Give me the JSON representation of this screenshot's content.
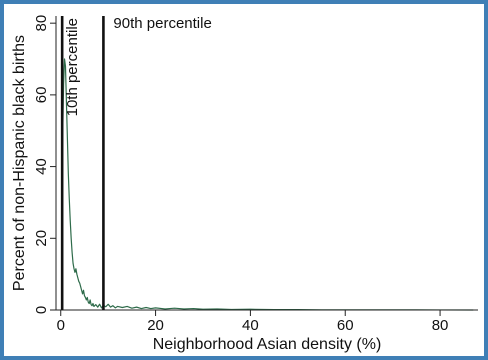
{
  "chart_data": {
    "type": "line",
    "title": "",
    "xlabel": "Neighborhood Asian density (%)",
    "ylabel": "Percent of non-Hispanic black births",
    "xlim": [
      -1,
      88
    ],
    "ylim": [
      0,
      82
    ],
    "x_ticks": [
      0,
      20,
      40,
      60,
      80
    ],
    "y_ticks": [
      0,
      20,
      40,
      60,
      80
    ],
    "grid": false,
    "series": [
      {
        "color": "#2e6b4a",
        "points": [
          [
            0.2,
            27
          ],
          [
            0.4,
            48
          ],
          [
            0.6,
            63
          ],
          [
            0.8,
            70
          ],
          [
            1.0,
            68
          ],
          [
            1.2,
            58
          ],
          [
            1.4,
            48
          ],
          [
            1.6,
            38
          ],
          [
            1.8,
            31
          ],
          [
            2.0,
            25
          ],
          [
            2.2,
            20
          ],
          [
            2.4,
            16
          ],
          [
            2.6,
            13
          ],
          [
            2.8,
            11.5
          ],
          [
            3.0,
            10.5
          ],
          [
            3.2,
            11.5
          ],
          [
            3.4,
            10
          ],
          [
            3.6,
            9
          ],
          [
            3.8,
            8
          ],
          [
            4.0,
            7.5
          ],
          [
            4.2,
            6.5
          ],
          [
            4.4,
            5.5
          ],
          [
            4.6,
            4.5
          ],
          [
            4.8,
            5.5
          ],
          [
            5.0,
            4
          ],
          [
            5.2,
            3.5
          ],
          [
            5.4,
            2.8
          ],
          [
            5.6,
            3.5
          ],
          [
            5.8,
            2.2
          ],
          [
            6.0,
            1.8
          ],
          [
            6.2,
            2.8
          ],
          [
            6.4,
            1.5
          ],
          [
            6.6,
            1.2
          ],
          [
            6.8,
            1.8
          ],
          [
            7.0,
            1.0
          ],
          [
            7.4,
            1.5
          ],
          [
            7.8,
            0.8
          ],
          [
            8.2,
            1.6
          ],
          [
            8.6,
            0.6
          ],
          [
            9.0,
            1.3
          ],
          [
            9.5,
            0.9
          ],
          [
            10,
            1.6
          ],
          [
            10.5,
            0.8
          ],
          [
            11,
            1.2
          ],
          [
            11.5,
            0.6
          ],
          [
            12,
            1.0
          ],
          [
            13,
            0.7
          ],
          [
            14,
            1.0
          ],
          [
            15,
            0.5
          ],
          [
            16,
            0.8
          ],
          [
            17,
            0.4
          ],
          [
            18,
            0.7
          ],
          [
            19,
            0.4
          ],
          [
            20,
            0.6
          ],
          [
            22,
            0.3
          ],
          [
            24,
            0.5
          ],
          [
            26,
            0.3
          ],
          [
            28,
            0.4
          ],
          [
            30,
            0.2
          ],
          [
            33,
            0.3
          ],
          [
            36,
            0.15
          ],
          [
            40,
            0.2
          ],
          [
            45,
            0.1
          ],
          [
            50,
            0.1
          ],
          [
            55,
            0.05
          ],
          [
            60,
            0.05
          ],
          [
            65,
            0.05
          ],
          [
            70,
            0.03
          ],
          [
            75,
            0.03
          ],
          [
            80,
            0.02
          ],
          [
            87,
            0.0
          ]
        ]
      }
    ],
    "reference_lines": [
      {
        "x": 0.3,
        "label": "10th percentile",
        "orientation": "vertical"
      },
      {
        "x": 9,
        "label": "90th percentile",
        "orientation": "horizontal"
      }
    ]
  }
}
